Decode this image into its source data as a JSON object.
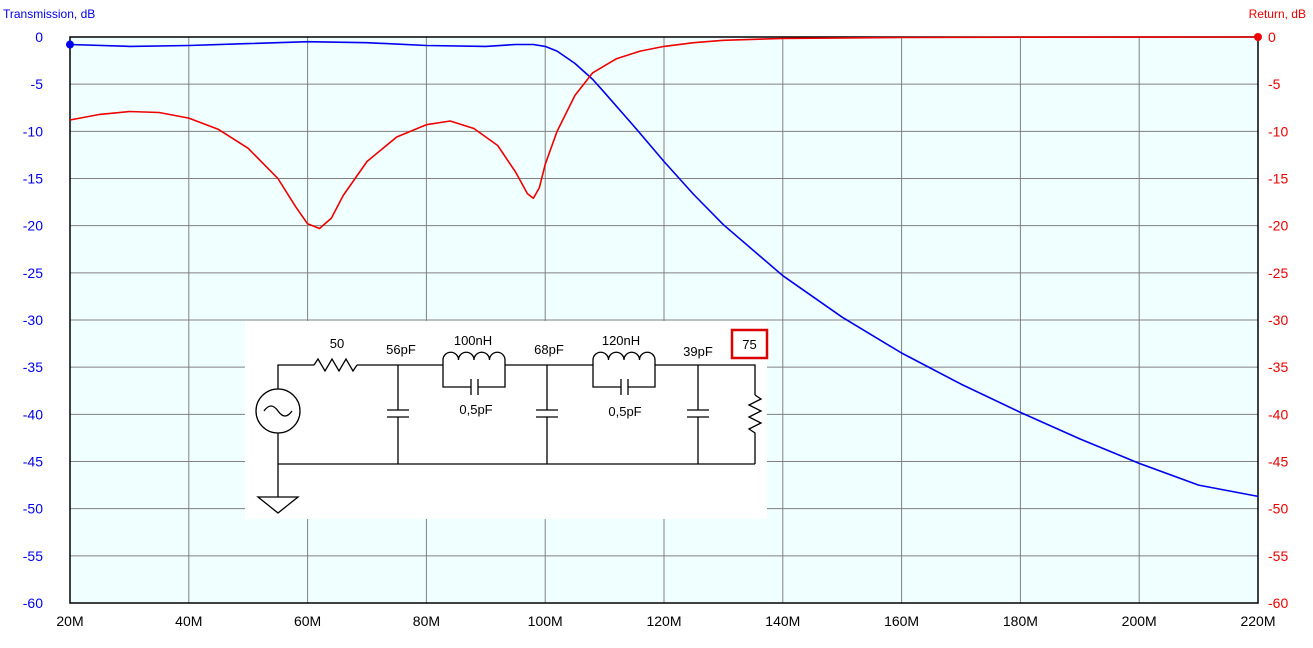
{
  "chart_data": {
    "type": "line",
    "left_axis_label": "Transmission, dB",
    "right_axis_label": "Return, dB",
    "x_ticks": [
      "20M",
      "40M",
      "60M",
      "80M",
      "100M",
      "120M",
      "140M",
      "160M",
      "180M",
      "200M",
      "220M"
    ],
    "x_range_mhz": [
      20,
      220
    ],
    "y_ticks": [
      "0",
      "-5",
      "-10",
      "-15",
      "-20",
      "-25",
      "-30",
      "-35",
      "-40",
      "-45",
      "-50",
      "-55",
      "-60"
    ],
    "y_range": [
      -60,
      0
    ],
    "grid": true,
    "colors": {
      "transmission": "#0000ee",
      "return": "#ee0000",
      "plot_bg": "#f0ffff",
      "grid": "#808080"
    },
    "series": [
      {
        "axis": "left",
        "x": [
          20,
          30,
          40,
          50,
          60,
          70,
          80,
          90,
          95,
          98,
          100,
          102,
          105,
          108,
          110,
          115,
          120,
          125,
          130,
          140,
          150,
          160,
          170,
          180,
          190,
          200,
          210,
          220
        ],
        "y": [
          -0.8,
          -1.0,
          -0.9,
          -0.7,
          -0.5,
          -0.6,
          -0.9,
          -1.0,
          -0.8,
          -0.8,
          -1.0,
          -1.5,
          -2.8,
          -4.5,
          -5.9,
          -9.5,
          -13.2,
          -16.7,
          -19.9,
          -25.3,
          -29.7,
          -33.5,
          -36.8,
          -39.8,
          -42.6,
          -45.2,
          -47.5,
          -48.7
        ]
      },
      {
        "axis": "right",
        "x": [
          20,
          25,
          30,
          35,
          40,
          45,
          50,
          55,
          58,
          60,
          62,
          64,
          66,
          70,
          75,
          80,
          84,
          88,
          92,
          95,
          97,
          98,
          99,
          100,
          102,
          105,
          108,
          112,
          116,
          120,
          125,
          130,
          140,
          160,
          180,
          200,
          220
        ],
        "y": [
          -8.8,
          -8.2,
          -7.9,
          -8.0,
          -8.6,
          -9.8,
          -11.8,
          -15.0,
          -18.0,
          -19.8,
          -20.3,
          -19.2,
          -16.8,
          -13.2,
          -10.6,
          -9.3,
          -8.9,
          -9.7,
          -11.5,
          -14.3,
          -16.6,
          -17.1,
          -16.0,
          -13.5,
          -10.0,
          -6.2,
          -3.8,
          -2.3,
          -1.5,
          -1.0,
          -0.6,
          -0.35,
          -0.15,
          -0.05,
          -0.02,
          -0.01,
          0
        ]
      }
    ]
  },
  "schematic": {
    "source_resistor": "50",
    "c1": "56pF",
    "l1": "100nH",
    "c_parallel1": "0,5pF",
    "c2": "68pF",
    "l2": "120nH",
    "c_parallel2": "0,5pF",
    "c3": "39pF",
    "load": "75"
  }
}
